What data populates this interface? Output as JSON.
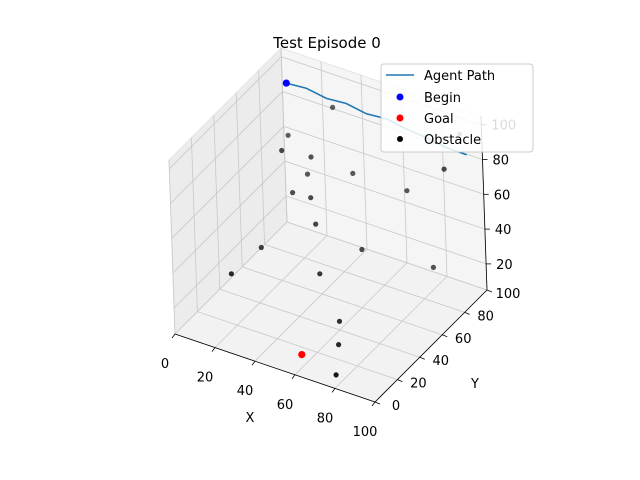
{
  "chart_data": {
    "type": "scatter",
    "projection": "3d",
    "title": "Test Episode 0",
    "xlabel": "X",
    "ylabel": "Y",
    "zlabel": "",
    "xlim": [
      0,
      100
    ],
    "ylim": [
      0,
      100
    ],
    "zlim": [
      5,
      105
    ],
    "xticks": [
      0,
      20,
      40,
      60,
      80,
      100
    ],
    "yticks": [
      0,
      20,
      40,
      60,
      80,
      100
    ],
    "zticks": [
      20,
      40,
      60,
      80,
      100
    ],
    "grid": true,
    "legend_position": "top-right",
    "legend": [
      "Agent Path",
      "Begin",
      "Goal",
      "Obstacle"
    ],
    "series": [
      {
        "name": "Agent Path",
        "kind": "line",
        "color": "#1f77b4",
        "points": [
          [
            5,
            95,
            90
          ],
          [
            15,
            95,
            91
          ],
          [
            25,
            95,
            89
          ],
          [
            35,
            95,
            90
          ],
          [
            45,
            95,
            88
          ],
          [
            55,
            95,
            89
          ],
          [
            65,
            95,
            87
          ],
          [
            75,
            95,
            86
          ],
          [
            85,
            95,
            84
          ],
          [
            95,
            95,
            84
          ]
        ]
      },
      {
        "name": "Begin",
        "kind": "point",
        "color": "#0000ff",
        "points": [
          [
            5,
            95,
            90
          ]
        ]
      },
      {
        "name": "Goal",
        "kind": "point",
        "color": "#ff0000",
        "points": [
          [
            55,
            15,
            5
          ]
        ]
      },
      {
        "name": "Obstacle",
        "kind": "point",
        "color": "#000000",
        "points": [
          [
            10,
            60,
            20
          ],
          [
            12,
            30,
            25
          ],
          [
            18,
            75,
            45
          ],
          [
            20,
            85,
            50
          ],
          [
            15,
            72,
            70
          ],
          [
            25,
            80,
            65
          ],
          [
            30,
            70,
            50
          ],
          [
            35,
            65,
            40
          ],
          [
            40,
            90,
            55
          ],
          [
            45,
            50,
            25
          ],
          [
            55,
            70,
            30
          ],
          [
            60,
            40,
            10
          ],
          [
            65,
            30,
            5
          ],
          [
            70,
            85,
            60
          ],
          [
            72,
            15,
            0
          ],
          [
            85,
            80,
            25
          ],
          [
            90,
            98,
            92
          ],
          [
            98,
            70,
            93
          ],
          [
            28,
            95,
            85
          ],
          [
            5,
            95,
            60
          ]
        ]
      }
    ]
  }
}
